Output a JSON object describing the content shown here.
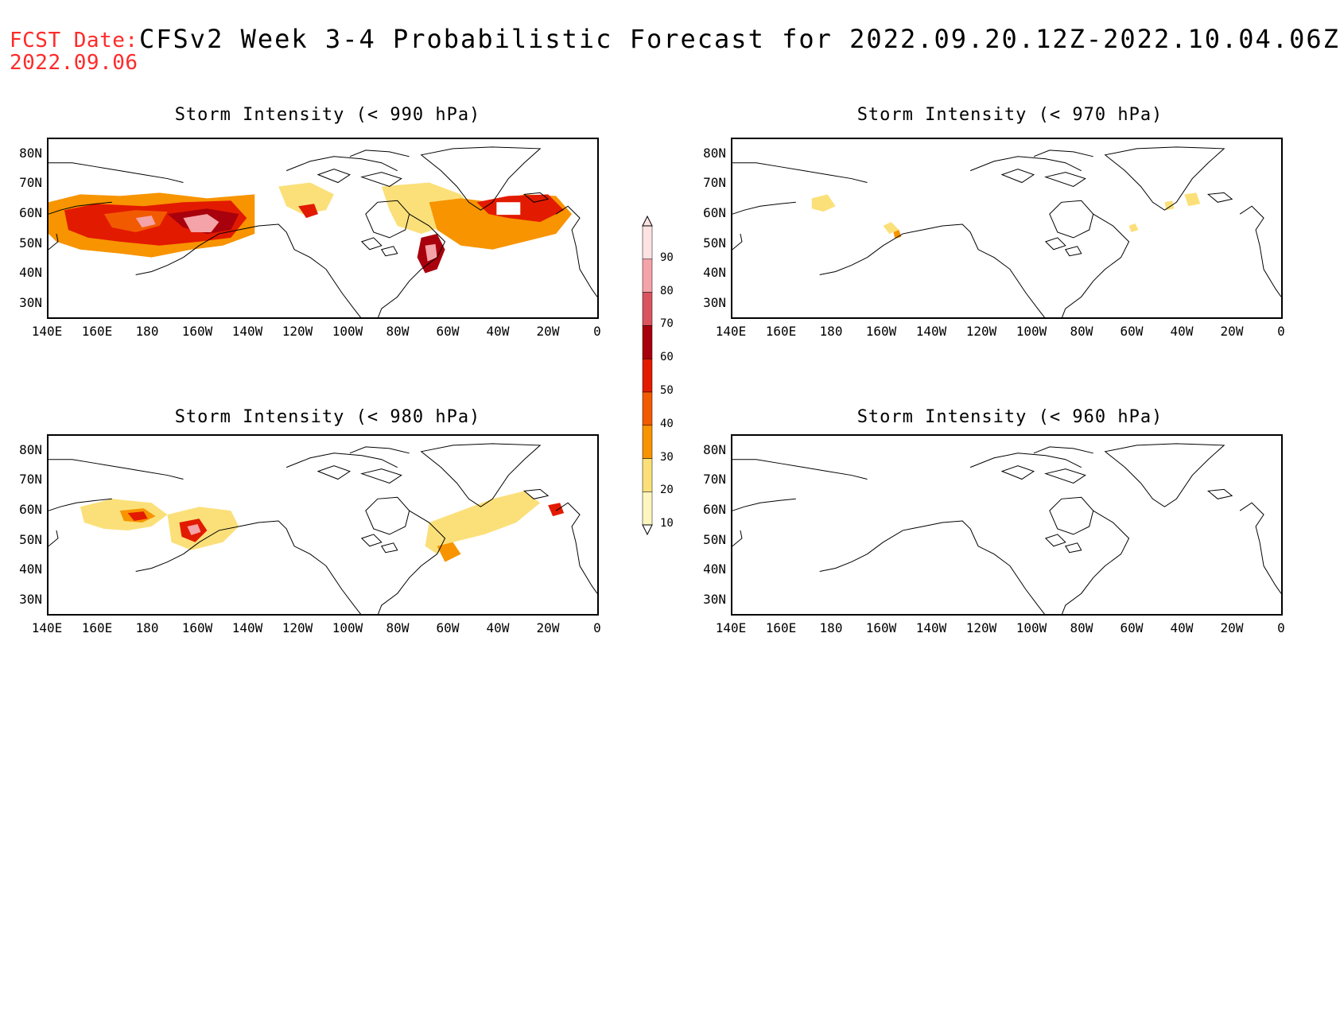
{
  "header": {
    "fcst_label": "FCST Date:",
    "fcst_date": "2022.09.06",
    "title": "CFSv2 Week 3-4 Probabilistic Forecast for 2022.09.20.12Z-2022.10.04.06Z"
  },
  "panels": [
    {
      "title": "Storm Intensity (< 990 hPa)"
    },
    {
      "title": "Storm Intensity (< 970 hPa)"
    },
    {
      "title": "Storm Intensity (< 980 hPa)"
    },
    {
      "title": "Storm Intensity (< 960 hPa)"
    }
  ],
  "axes": {
    "lat_labels": [
      "80N",
      "70N",
      "60N",
      "50N",
      "40N",
      "30N"
    ],
    "lon_labels": [
      "140E",
      "160E",
      "180",
      "160W",
      "140W",
      "120W",
      "100W",
      "80W",
      "60W",
      "40W",
      "20W",
      "0"
    ]
  },
  "colorbar": {
    "levels": [
      "90",
      "80",
      "70",
      "60",
      "50",
      "40",
      "30",
      "20",
      "10"
    ],
    "colors": [
      "#fde2e2",
      "#f4a3a8",
      "#d9545e",
      "#a8000c",
      "#e21a00",
      "#f25a00",
      "#f79400",
      "#fbe07a",
      "#fff6bf"
    ]
  },
  "colors": {
    "level_10": "#fff6bf",
    "level_20": "#fbe07a",
    "level_30": "#f79400",
    "level_40": "#f25a00",
    "level_50": "#e21a00",
    "level_60": "#a8000c",
    "level_70": "#d9545e",
    "level_80": "#f4a3a8",
    "level_90": "#fde2e2"
  }
}
